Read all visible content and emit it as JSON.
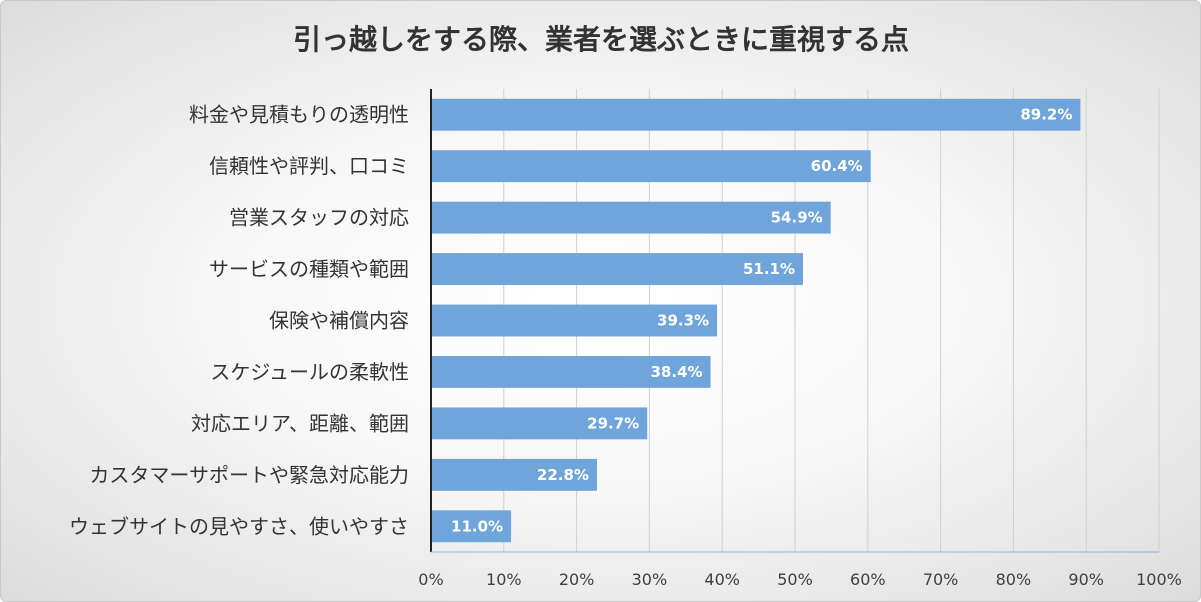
{
  "chart_data": {
    "type": "bar",
    "orientation": "horizontal",
    "title": "引っ越しをする際、業者を選ぶときに重視する点",
    "categories": [
      "料金や見積もりの透明性",
      "信頼性や評判、口コミ",
      "営業スタッフの対応",
      "サービスの種類や範囲",
      "保険や補償内容",
      "スケジュールの柔軟性",
      "対応エリア、距離、範囲",
      "カスタマーサポートや緊急対応能力",
      "ウェブサイトの見やすさ、使いやすさ"
    ],
    "values": [
      89.2,
      60.4,
      54.9,
      51.1,
      39.3,
      38.4,
      29.7,
      22.8,
      11.0
    ],
    "value_labels": [
      "89.2%",
      "60.4%",
      "54.9%",
      "51.1%",
      "39.3%",
      "38.4%",
      "29.7%",
      "22.8%",
      "11.0%"
    ],
    "xlim": [
      0,
      100
    ],
    "xticks": [
      0,
      10,
      20,
      30,
      40,
      50,
      60,
      70,
      80,
      90,
      100
    ],
    "xtick_labels": [
      "0%",
      "10%",
      "20%",
      "30%",
      "40%",
      "50%",
      "60%",
      "70%",
      "80%",
      "90%",
      "100%"
    ],
    "xlabel": "",
    "ylabel": "",
    "grid": true,
    "legend": "none",
    "bar_color": "#6fa5da"
  }
}
